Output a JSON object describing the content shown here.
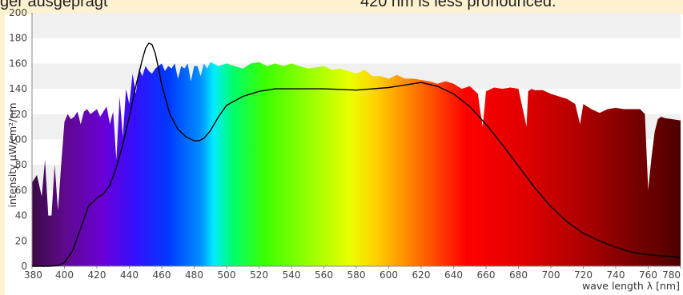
{
  "captions": {
    "left": "ger ausgeprägt",
    "right": "420 nm is less pronounced."
  },
  "chart_data": {
    "type": "area",
    "title": "",
    "xlabel": "wave length λ [nm]",
    "ylabel": "intensity μW/cm²/nm",
    "xlim": [
      380,
      780
    ],
    "ylim": [
      0,
      200
    ],
    "x_ticks": [
      "380",
      "400",
      "420",
      "440",
      "460",
      "480",
      "500",
      "520",
      "540",
      "560",
      "580",
      "600",
      "620",
      "640",
      "660",
      "680",
      "700",
      "720",
      "740",
      "760",
      "780"
    ],
    "y_ticks": [
      "0",
      "20",
      "40",
      "60",
      "80",
      "100",
      "120",
      "140",
      "160",
      "180",
      "200"
    ],
    "grid": "horizontal bands",
    "series": [
      {
        "kind": "sunlight spectrum (colored area)",
        "x": [
          380,
          383,
          386,
          388,
          390,
          392,
          394,
          396,
          398,
          400,
          402,
          404,
          406,
          408,
          410,
          412,
          414,
          416,
          418,
          420,
          422,
          424,
          426,
          428,
          430,
          432,
          434,
          436,
          438,
          440,
          442,
          444,
          446,
          448,
          450,
          452,
          454,
          456,
          458,
          460,
          462,
          464,
          466,
          468,
          470,
          472,
          474,
          476,
          478,
          480,
          482,
          484,
          486,
          488,
          490,
          495,
          500,
          505,
          510,
          515,
          520,
          525,
          530,
          535,
          540,
          545,
          550,
          555,
          560,
          565,
          570,
          575,
          580,
          585,
          590,
          595,
          600,
          605,
          610,
          615,
          620,
          625,
          630,
          635,
          640,
          645,
          650,
          655,
          656,
          658,
          660,
          665,
          670,
          675,
          680,
          685,
          686,
          688,
          690,
          695,
          700,
          705,
          710,
          715,
          718,
          720,
          725,
          730,
          735,
          740,
          745,
          750,
          755,
          758,
          760,
          762,
          764,
          766,
          768,
          770,
          775,
          780
        ],
        "values": [
          66,
          72,
          55,
          84,
          40,
          40,
          80,
          44,
          80,
          114,
          120,
          116,
          118,
          122,
          112,
          122,
          124,
          120,
          122,
          124,
          118,
          122,
          126,
          112,
          122,
          84,
          134,
          102,
          140,
          128,
          152,
          136,
          156,
          150,
          158,
          154,
          152,
          156,
          158,
          160,
          154,
          158,
          156,
          160,
          148,
          158,
          156,
          160,
          146,
          158,
          158,
          150,
          160,
          156,
          161,
          158,
          160,
          158,
          156,
          160,
          161,
          158,
          160,
          158,
          160,
          158,
          156,
          157,
          158,
          155,
          156,
          154,
          152,
          155,
          150,
          150,
          148,
          151,
          148,
          148,
          147,
          146,
          144,
          146,
          144,
          140,
          142,
          136,
          126,
          110,
          138,
          141,
          140,
          141,
          140,
          110,
          138,
          140,
          139,
          139,
          136,
          134,
          132,
          128,
          112,
          128,
          124,
          121,
          124,
          125,
          124,
          124,
          124,
          120,
          60,
          85,
          106,
          116,
          118,
          117,
          116,
          115
        ]
      },
      {
        "kind": "LED spectrum (black line)",
        "x": [
          380,
          390,
          396,
          400,
          405,
          410,
          415,
          418,
          420,
          424,
          428,
          432,
          436,
          440,
          444,
          448,
          450,
          452,
          454,
          456,
          458,
          460,
          462,
          465,
          470,
          475,
          480,
          483,
          486,
          490,
          495,
          500,
          510,
          520,
          530,
          540,
          560,
          580,
          600,
          610,
          620,
          630,
          640,
          650,
          660,
          670,
          680,
          690,
          700,
          710,
          720,
          730,
          740,
          750,
          760,
          770,
          780
        ],
        "values": [
          0,
          0,
          0.5,
          3,
          12,
          30,
          48,
          51,
          54,
          57,
          64,
          78,
          96,
          118,
          142,
          163,
          172,
          176,
          175,
          168,
          156,
          143,
          134,
          120,
          108,
          102,
          99,
          99,
          101,
          107,
          118,
          127,
          134,
          138,
          140,
          140,
          140,
          139,
          141,
          143,
          145,
          142,
          136,
          126,
          112,
          96,
          79,
          62,
          47,
          35,
          26,
          20,
          15,
          11,
          9,
          8,
          7
        ]
      }
    ]
  }
}
